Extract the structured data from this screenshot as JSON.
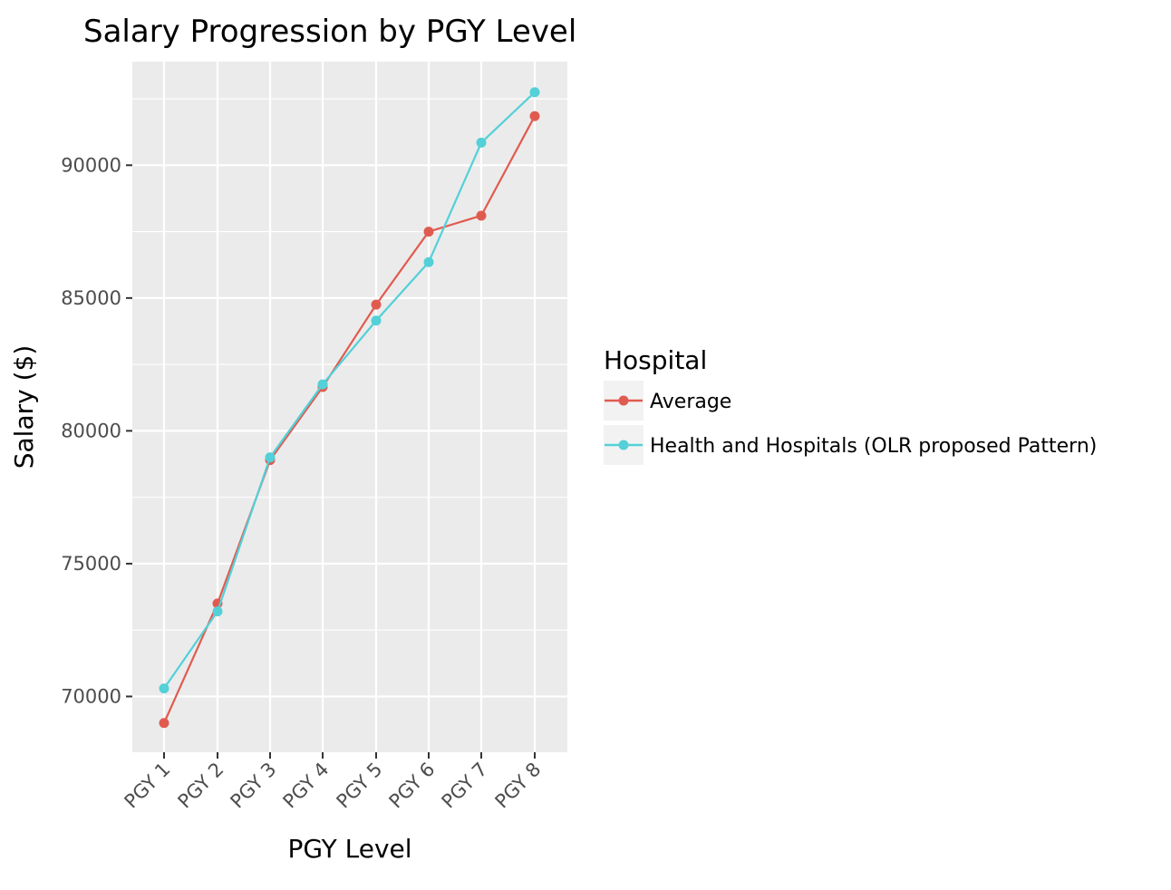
{
  "chart_data": {
    "type": "line",
    "title": "Salary Progression by PGY Level",
    "xlabel": "PGY Level",
    "ylabel": "Salary ($)",
    "categories": [
      "PGY 1",
      "PGY 2",
      "PGY 3",
      "PGY 4",
      "PGY 5",
      "PGY 6",
      "PGY 7",
      "PGY 8"
    ],
    "ylim": [
      67900,
      93900
    ],
    "yticks": [
      70000,
      75000,
      80000,
      85000,
      90000
    ],
    "grid": true,
    "legend": {
      "title": "Hospital",
      "position": "right"
    },
    "series": [
      {
        "name": "Average",
        "color": "#e05b4f",
        "values": [
          69000,
          73500,
          78900,
          81650,
          84750,
          87500,
          88100,
          91850
        ]
      },
      {
        "name": "Health and Hospitals (OLR proposed Pattern)",
        "color": "#53d0d8",
        "values": [
          70300,
          73200,
          79000,
          81750,
          84150,
          86350,
          90850,
          92750
        ]
      }
    ]
  }
}
